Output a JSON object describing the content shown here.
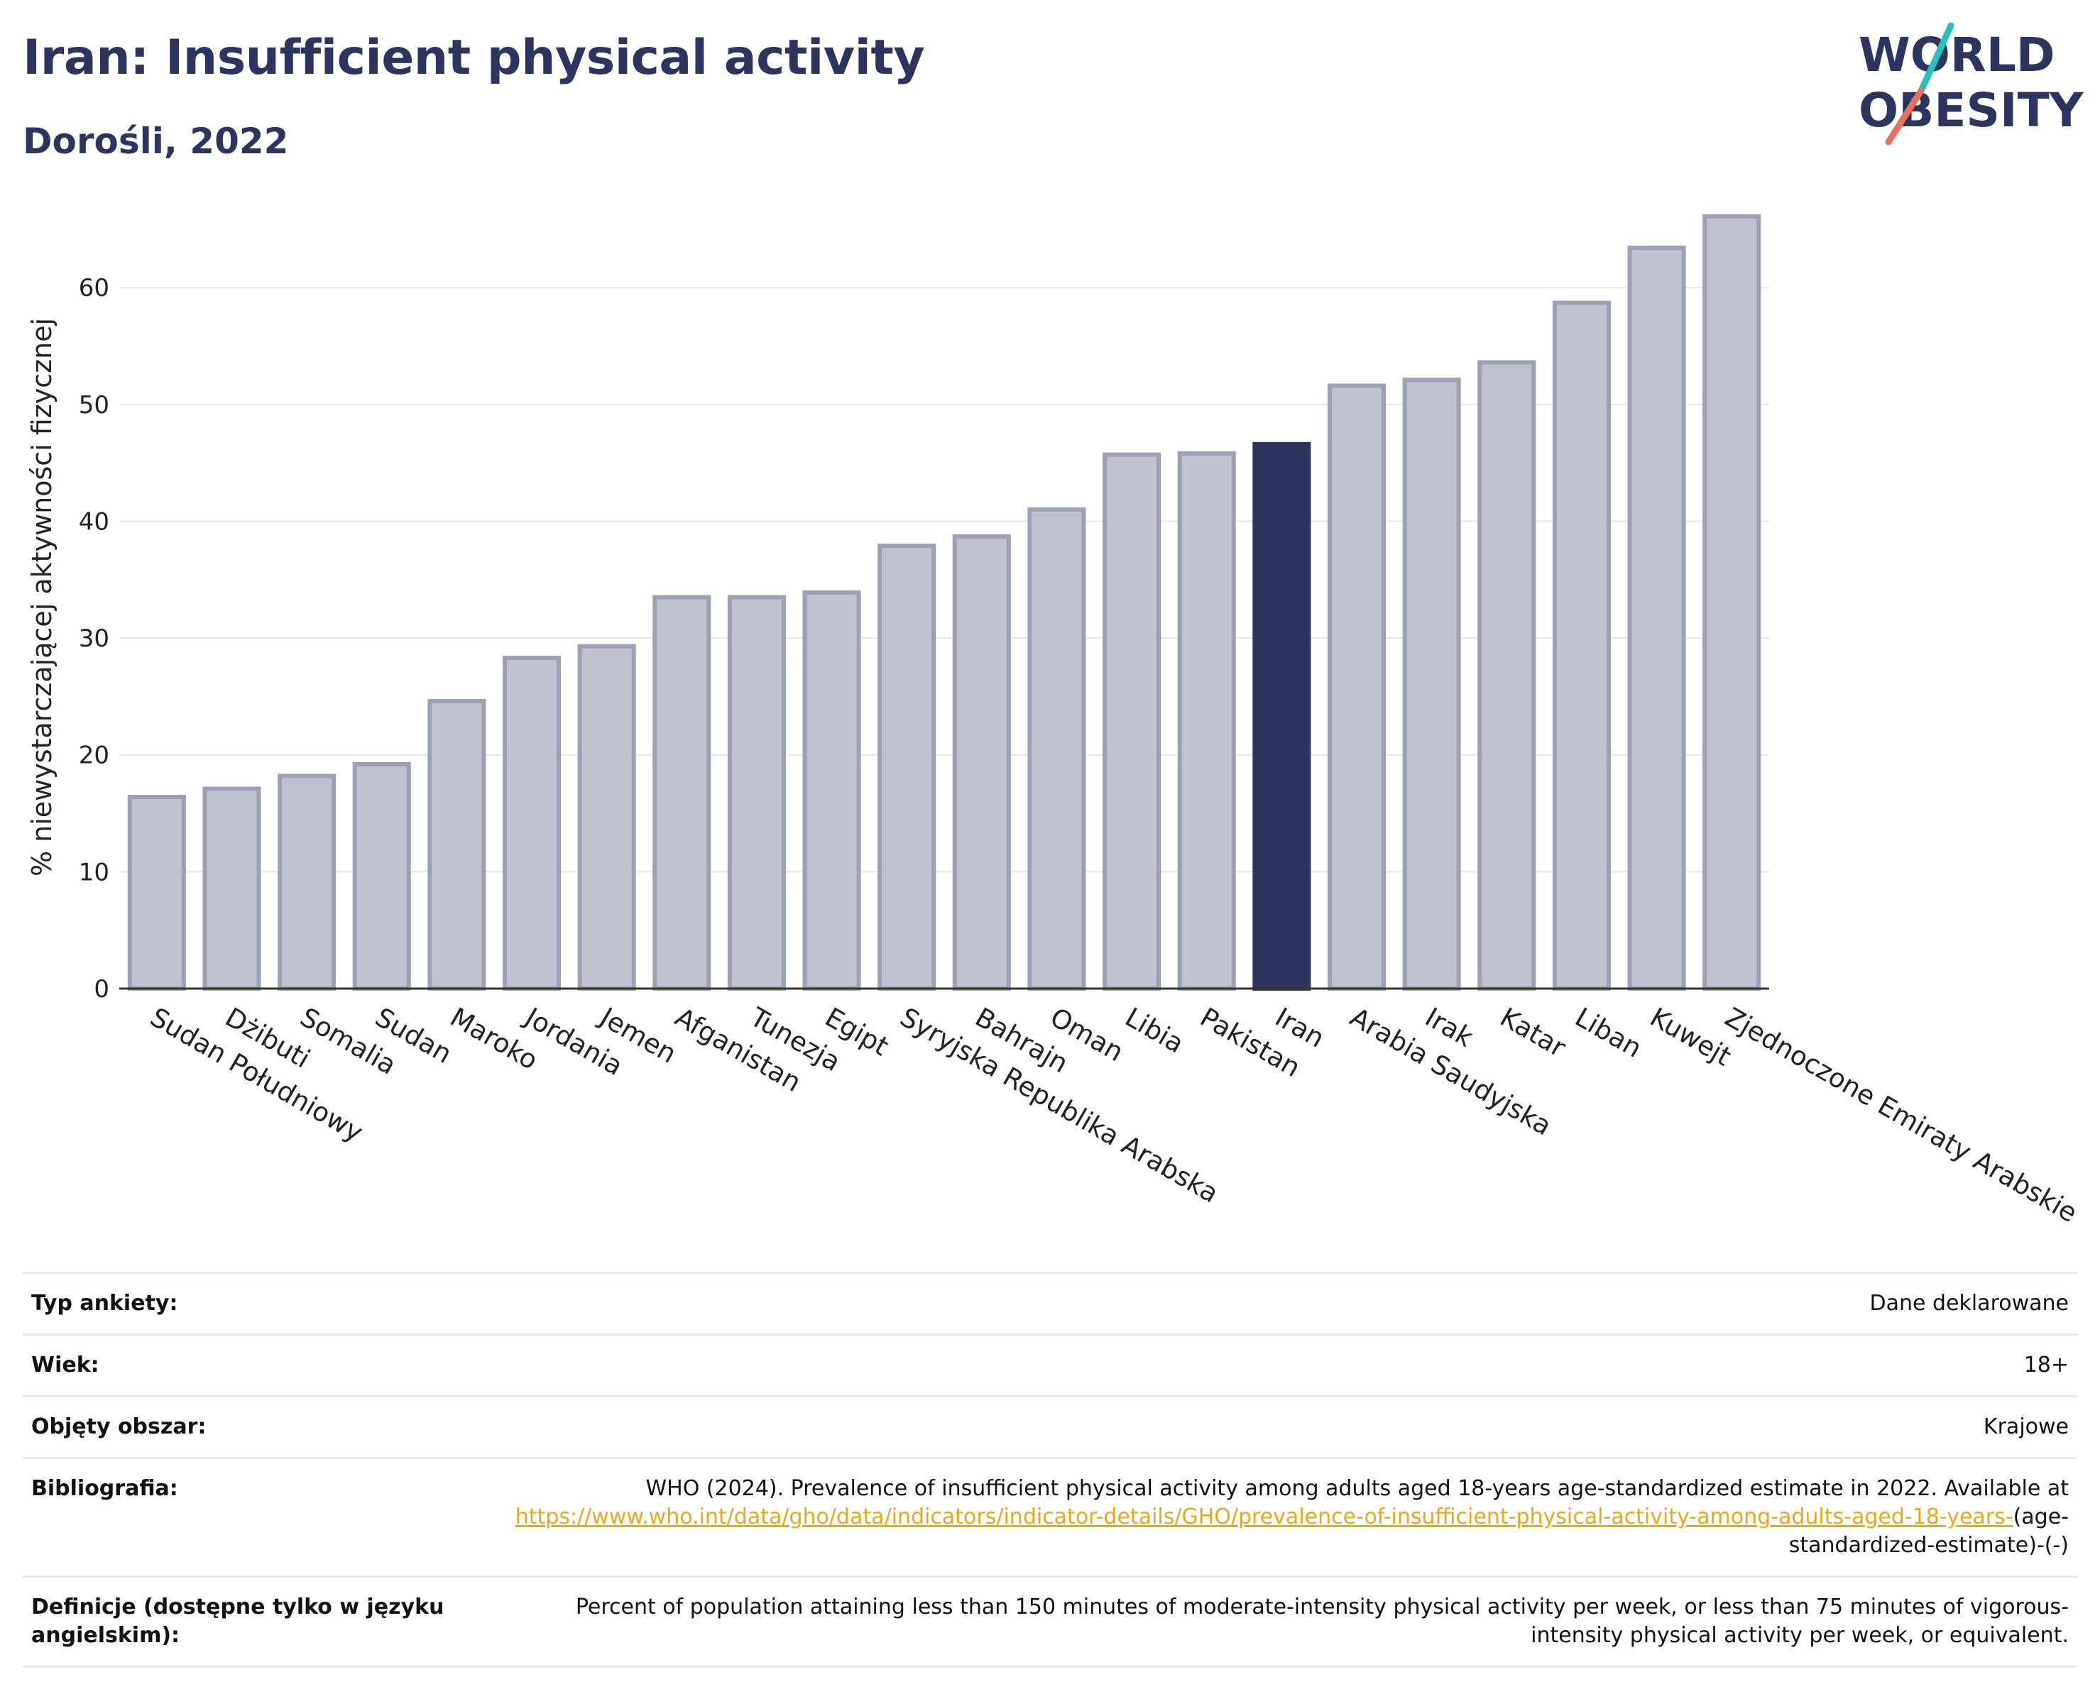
{
  "header": {
    "title": "Iran: Insufficient physical activity",
    "subtitle": "Dorośli, 2022",
    "logo_line1": "WORLD",
    "logo_line2": "OBESITY"
  },
  "colors": {
    "title": "#2b3560",
    "bar_default": "#bfc2cf",
    "bar_outline": "#9aa0b6",
    "bar_highlight": "#2b3560",
    "link": "#e9a81a",
    "logo_slash_teal": "#2bbfc0",
    "logo_slash_coral": "#e8715d"
  },
  "chart_data": {
    "type": "bar",
    "title": "",
    "xlabel": "",
    "ylabel": "% niewystarczającej aktywności fizycznej",
    "ylim": [
      0,
      67
    ],
    "yticks": [
      0,
      10,
      20,
      30,
      40,
      50,
      60
    ],
    "grid": true,
    "highlight": "Iran",
    "categories": [
      "Sudan Południowy",
      "Dżibuti",
      "Somalia",
      "Sudan",
      "Maroko",
      "Jordania",
      "Jemen",
      "Afganistan",
      "Tunezja",
      "Egipt",
      "Syryjska Republika Arabska",
      "Bahrajn",
      "Oman",
      "Libia",
      "Pakistan",
      "Iran",
      "Arabia Saudyjska",
      "Irak",
      "Katar",
      "Liban",
      "Kuwejt",
      "Zjednoczone Emiraty Arabskie"
    ],
    "values": [
      16.4,
      17.1,
      18.2,
      19.2,
      24.6,
      28.3,
      29.3,
      33.5,
      33.5,
      33.9,
      37.9,
      38.7,
      41.0,
      45.7,
      45.8,
      46.6,
      51.6,
      52.1,
      53.6,
      58.7,
      63.4,
      66.1
    ]
  },
  "info": {
    "rows": [
      {
        "key": "Typ ankiety:",
        "value": "Dane deklarowane"
      },
      {
        "key": "Wiek:",
        "value": "18+"
      },
      {
        "key": "Objęty obszar:",
        "value": "Krajowe"
      }
    ],
    "bibliography": {
      "key": "Bibliografia:",
      "text": "WHO (2024). Prevalence of insufficient physical activity among adults aged 18-years age-standardized estimate in 2022. Available at",
      "link": "https://www.who.int/data/gho/data/indicators/indicator-details/GHO/prevalence-of-insufficient-physical-activity-among-adults-aged-18-years-",
      "suffix": "(age-standardized-estimate)-(-)"
    },
    "definition": {
      "key": "Definicje (dostępne tylko w języku angielskim):",
      "value": "Percent of population attaining less than 150 minutes of moderate-intensity physical activity per week, or less than 75 minutes of vigorous-intensity physical activity per week, or equivalent."
    }
  }
}
